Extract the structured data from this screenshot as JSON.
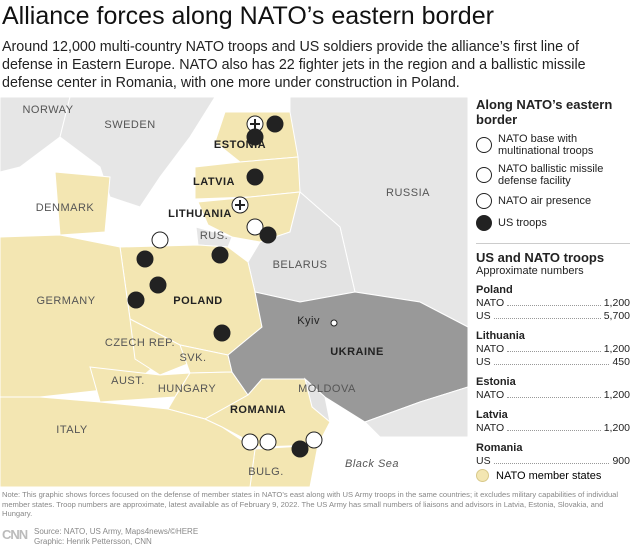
{
  "header": {
    "title": "Alliance forces along NATO’s eastern border",
    "subtitle": "Around 12,000 multi-country NATO troops and US soldiers provide the alliance’s first line of defense in Eastern Europe. NATO also has 22 fighter jets in the region and a ballistic missile defense center in Romania, with one more under construction in Poland."
  },
  "map": {
    "labels": [
      "NORWAY",
      "SWEDEN",
      "ESTONIA",
      "LATVIA",
      "LITHUANIA",
      "RUS.",
      "RUSSIA",
      "DENMARK",
      "BELARUS",
      "GERMANY",
      "POLAND",
      "CZECH REP.",
      "SVK.",
      "AUST.",
      "HUNGARY",
      "UKRAINE",
      "MOLDOVA",
      "ROMANIA",
      "ITALY",
      "BULG."
    ],
    "city": "Kyiv",
    "sea": "Black Sea"
  },
  "legend": {
    "title": "Along NATO’s eastern border",
    "items": [
      "NATO base with multinational troops",
      "NATO ballistic missile defense facility",
      "NATO air presence",
      "US troops"
    ],
    "member_states": "NATO member states"
  },
  "troops": {
    "title": "US and NATO troops",
    "subtitle": "Approximate numbers",
    "groups": [
      {
        "country": "Poland",
        "rows": [
          {
            "label": "NATO",
            "value": "1,200"
          },
          {
            "label": "US",
            "value": "5,700"
          }
        ]
      },
      {
        "country": "Lithuania",
        "rows": [
          {
            "label": "NATO",
            "value": "1,200"
          },
          {
            "label": "US",
            "value": "450"
          }
        ]
      },
      {
        "country": "Estonia",
        "rows": [
          {
            "label": "NATO",
            "value": "1,200"
          }
        ]
      },
      {
        "country": "Latvia",
        "rows": [
          {
            "label": "NATO",
            "value": "1,200"
          }
        ]
      },
      {
        "country": "Romania",
        "rows": [
          {
            "label": "US",
            "value": "900"
          }
        ]
      }
    ]
  },
  "footer": {
    "note": "Note: This graphic shows forces focused on the defense of member states in NATO’s east along with US Army troops in the same countries; it excludes military capabilities of individual member states. Troop numbers are approximate, latest available as of February 9, 2022. The US Army has small numbers of liaisons and advisors in Latvia, Estonia, Slovakia, and Hungary.",
    "logo": "CNN",
    "source": "Source: NATO, US Army, Maps4news/©HERE",
    "graphic": "Graphic: Henrik Pettersson, CNN"
  }
}
